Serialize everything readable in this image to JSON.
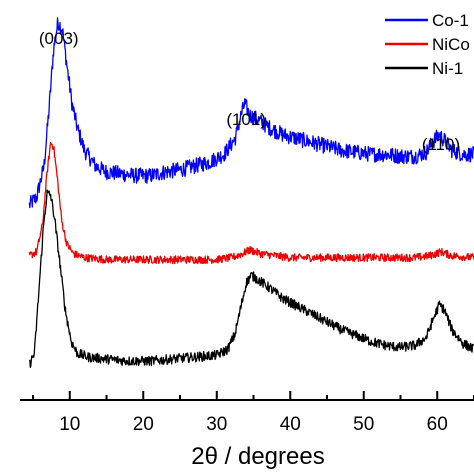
{
  "chart_data": {
    "type": "line",
    "title": "",
    "xlabel": "2θ / degrees",
    "ylabel": "",
    "xlim": [
      3.5,
      65
    ],
    "xticks": [
      10,
      20,
      30,
      40,
      50,
      60
    ],
    "xtick_labels": [
      "10",
      "20",
      "30",
      "40",
      "50",
      "60"
    ],
    "yticks_shown": false,
    "legend_position": "top-right",
    "peak_labels": [
      {
        "text": "(003)",
        "x": 8.5
      },
      {
        "text": "(101)",
        "x": 34
      },
      {
        "text": "(110)",
        "x": 60.5
      }
    ],
    "series": [
      {
        "name": "Co-1",
        "color": "#0000ff",
        "noise": 0.04,
        "points": [
          [
            4.5,
            0.5
          ],
          [
            5.5,
            0.52
          ],
          [
            6.5,
            0.6
          ],
          [
            7.2,
            0.75
          ],
          [
            7.8,
            0.9
          ],
          [
            8.4,
            0.97
          ],
          [
            9.0,
            0.95
          ],
          [
            9.6,
            0.86
          ],
          [
            10.3,
            0.76
          ],
          [
            11.0,
            0.7
          ],
          [
            12.0,
            0.64
          ],
          [
            13.5,
            0.6
          ],
          [
            15.0,
            0.585
          ],
          [
            17.0,
            0.58
          ],
          [
            19.0,
            0.575
          ],
          [
            21.0,
            0.575
          ],
          [
            23.0,
            0.585
          ],
          [
            25.0,
            0.59
          ],
          [
            27.0,
            0.6
          ],
          [
            29.0,
            0.61
          ],
          [
            31.0,
            0.63
          ],
          [
            32.5,
            0.67
          ],
          [
            33.3,
            0.73
          ],
          [
            33.8,
            0.76
          ],
          [
            34.5,
            0.73
          ],
          [
            35.5,
            0.72
          ],
          [
            37.0,
            0.7
          ],
          [
            39.0,
            0.68
          ],
          [
            41.0,
            0.67
          ],
          [
            43.0,
            0.66
          ],
          [
            45.0,
            0.65
          ],
          [
            47.0,
            0.64
          ],
          [
            49.0,
            0.635
          ],
          [
            51.0,
            0.63
          ],
          [
            53.0,
            0.63
          ],
          [
            55.0,
            0.625
          ],
          [
            57.0,
            0.625
          ],
          [
            58.5,
            0.635
          ],
          [
            59.5,
            0.665
          ],
          [
            60.3,
            0.68
          ],
          [
            61.0,
            0.665
          ],
          [
            62.0,
            0.64
          ],
          [
            63.5,
            0.63
          ],
          [
            65.0,
            0.63
          ]
        ]
      },
      {
        "name": "NiCo",
        "color": "#ee0000",
        "noise": 0.02,
        "points": [
          [
            4.5,
            0.37
          ],
          [
            5.5,
            0.38
          ],
          [
            6.3,
            0.45
          ],
          [
            6.9,
            0.58
          ],
          [
            7.4,
            0.66
          ],
          [
            7.8,
            0.65
          ],
          [
            8.3,
            0.57
          ],
          [
            8.9,
            0.46
          ],
          [
            9.6,
            0.4
          ],
          [
            10.5,
            0.375
          ],
          [
            12.0,
            0.365
          ],
          [
            15.0,
            0.36
          ],
          [
            20.0,
            0.36
          ],
          [
            25.0,
            0.36
          ],
          [
            30.0,
            0.36
          ],
          [
            32.0,
            0.365
          ],
          [
            33.5,
            0.375
          ],
          [
            34.5,
            0.385
          ],
          [
            36.0,
            0.375
          ],
          [
            38.0,
            0.37
          ],
          [
            40.0,
            0.365
          ],
          [
            45.0,
            0.365
          ],
          [
            50.0,
            0.365
          ],
          [
            55.0,
            0.365
          ],
          [
            57.0,
            0.365
          ],
          [
            59.0,
            0.37
          ],
          [
            60.5,
            0.38
          ],
          [
            62.0,
            0.37
          ],
          [
            65.0,
            0.365
          ]
        ]
      },
      {
        "name": "Ni-1",
        "color": "#000000",
        "noise": 0.025,
        "points": [
          [
            4.5,
            0.09
          ],
          [
            5.2,
            0.12
          ],
          [
            5.8,
            0.28
          ],
          [
            6.4,
            0.44
          ],
          [
            6.9,
            0.53
          ],
          [
            7.4,
            0.525
          ],
          [
            7.9,
            0.47
          ],
          [
            8.6,
            0.36
          ],
          [
            9.4,
            0.23
          ],
          [
            10.2,
            0.15
          ],
          [
            11.0,
            0.12
          ],
          [
            12.5,
            0.11
          ],
          [
            15.0,
            0.105
          ],
          [
            18.0,
            0.1
          ],
          [
            21.0,
            0.1
          ],
          [
            24.0,
            0.105
          ],
          [
            27.0,
            0.11
          ],
          [
            30.0,
            0.115
          ],
          [
            31.5,
            0.13
          ],
          [
            32.5,
            0.17
          ],
          [
            33.3,
            0.24
          ],
          [
            34.0,
            0.3
          ],
          [
            34.7,
            0.32
          ],
          [
            35.5,
            0.31
          ],
          [
            37.0,
            0.29
          ],
          [
            39.0,
            0.26
          ],
          [
            41.0,
            0.24
          ],
          [
            43.0,
            0.22
          ],
          [
            45.0,
            0.2
          ],
          [
            47.0,
            0.18
          ],
          [
            49.0,
            0.165
          ],
          [
            51.0,
            0.15
          ],
          [
            53.0,
            0.14
          ],
          [
            55.0,
            0.135
          ],
          [
            57.0,
            0.14
          ],
          [
            58.5,
            0.16
          ],
          [
            59.5,
            0.21
          ],
          [
            60.3,
            0.245
          ],
          [
            61.0,
            0.23
          ],
          [
            62.0,
            0.18
          ],
          [
            63.5,
            0.145
          ],
          [
            65.0,
            0.13
          ]
        ]
      }
    ]
  }
}
